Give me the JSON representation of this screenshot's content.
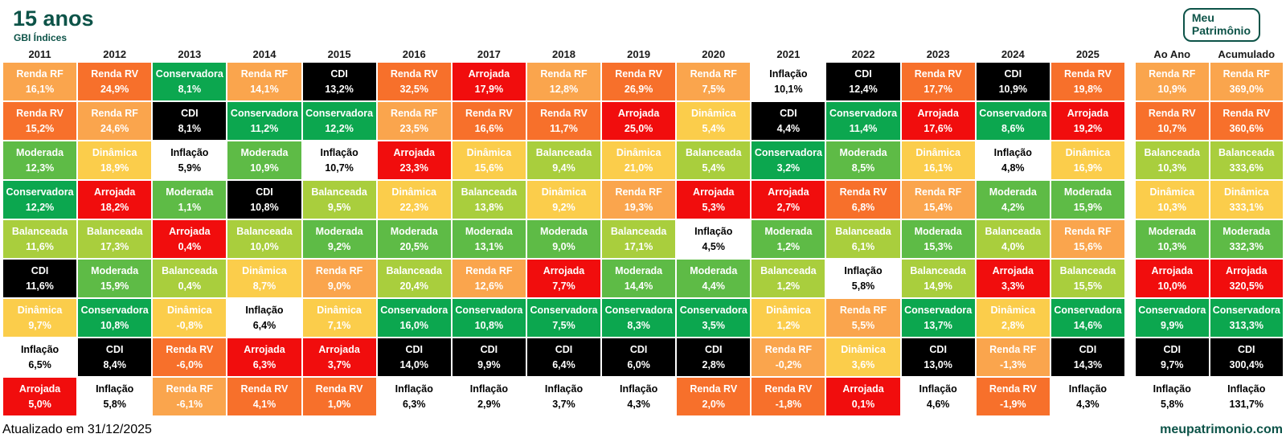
{
  "header": {
    "title": "15 anos",
    "subtitle": "GBI Índices",
    "logo_line1": "Meu",
    "logo_line2": "Patrimônio"
  },
  "footer": {
    "updated": "Atualizado em 31/12/2025",
    "site": "meupatrimonio.com"
  },
  "colors": {
    "brand_green": "#0d5348",
    "header_text": "#1a1a1a"
  },
  "chart_data": {
    "type": "table",
    "title": "15 anos",
    "subtitle": "GBI Índices",
    "description": "Quilt chart of annual returns by portfolio profile, ranked best-to-worst per year, 2011-2025 plus annualized (Ao Ano) and cumulative (Acumulado) columns",
    "categories": {
      "renda_rf": {
        "label": "Renda RF",
        "bg": "#faa54d",
        "fg": "#ffffff"
      },
      "renda_rv": {
        "label": "Renda RV",
        "bg": "#f7702b",
        "fg": "#ffffff"
      },
      "conservadora": {
        "label": "Conservadora",
        "bg": "#0ca74f",
        "fg": "#ffffff"
      },
      "moderada": {
        "label": "Moderada",
        "bg": "#5ebb46",
        "fg": "#ffffff"
      },
      "balanceada": {
        "label": "Balanceada",
        "bg": "#a9ce3d",
        "fg": "#ffffff"
      },
      "dinamica": {
        "label": "Dinâmica",
        "bg": "#fbcd4b",
        "fg": "#ffffff"
      },
      "arrojada": {
        "label": "Arrojada",
        "bg": "#f10d0d",
        "fg": "#ffffff"
      },
      "cdi": {
        "label": "CDI",
        "bg": "#000000",
        "fg": "#ffffff"
      },
      "inflacao": {
        "label": "Inflação",
        "bg": "#ffffff",
        "fg": "#000000"
      }
    },
    "columns": [
      {
        "label": "2011",
        "summary": false,
        "cells": [
          [
            "renda_rf",
            "16,1%"
          ],
          [
            "renda_rv",
            "15,2%"
          ],
          [
            "moderada",
            "12,3%"
          ],
          [
            "conservadora",
            "12,2%"
          ],
          [
            "balanceada",
            "11,6%"
          ],
          [
            "cdi",
            "11,6%"
          ],
          [
            "dinamica",
            "9,7%"
          ],
          [
            "inflacao",
            "6,5%"
          ],
          [
            "arrojada",
            "5,0%"
          ]
        ]
      },
      {
        "label": "2012",
        "summary": false,
        "cells": [
          [
            "renda_rv",
            "24,9%"
          ],
          [
            "renda_rf",
            "24,6%"
          ],
          [
            "dinamica",
            "18,9%"
          ],
          [
            "arrojada",
            "18,2%"
          ],
          [
            "balanceada",
            "17,3%"
          ],
          [
            "moderada",
            "15,9%"
          ],
          [
            "conservadora",
            "10,8%"
          ],
          [
            "cdi",
            "8,4%"
          ],
          [
            "inflacao",
            "5,8%"
          ]
        ]
      },
      {
        "label": "2013",
        "summary": false,
        "cells": [
          [
            "conservadora",
            "8,1%"
          ],
          [
            "cdi",
            "8,1%"
          ],
          [
            "inflacao",
            "5,9%"
          ],
          [
            "moderada",
            "1,1%"
          ],
          [
            "arrojada",
            "0,4%"
          ],
          [
            "balanceada",
            "0,4%"
          ],
          [
            "dinamica",
            "-0,8%"
          ],
          [
            "renda_rv",
            "-6,0%"
          ],
          [
            "renda_rf",
            "-6,1%"
          ]
        ]
      },
      {
        "label": "2014",
        "summary": false,
        "cells": [
          [
            "renda_rf",
            "14,1%"
          ],
          [
            "conservadora",
            "11,2%"
          ],
          [
            "moderada",
            "10,9%"
          ],
          [
            "cdi",
            "10,8%"
          ],
          [
            "balanceada",
            "10,0%"
          ],
          [
            "dinamica",
            "8,7%"
          ],
          [
            "inflacao",
            "6,4%"
          ],
          [
            "arrojada",
            "6,3%"
          ],
          [
            "renda_rv",
            "4,1%"
          ]
        ]
      },
      {
        "label": "2015",
        "summary": false,
        "cells": [
          [
            "cdi",
            "13,2%"
          ],
          [
            "conservadora",
            "12,2%"
          ],
          [
            "inflacao",
            "10,7%"
          ],
          [
            "balanceada",
            "9,5%"
          ],
          [
            "moderada",
            "9,2%"
          ],
          [
            "renda_rf",
            "9,0%"
          ],
          [
            "dinamica",
            "7,1%"
          ],
          [
            "arrojada",
            "3,7%"
          ],
          [
            "renda_rv",
            "1,0%"
          ]
        ]
      },
      {
        "label": "2016",
        "summary": false,
        "cells": [
          [
            "renda_rv",
            "32,5%"
          ],
          [
            "renda_rf",
            "23,5%"
          ],
          [
            "arrojada",
            "23,3%"
          ],
          [
            "dinamica",
            "22,3%"
          ],
          [
            "moderada",
            "20,5%"
          ],
          [
            "balanceada",
            "20,4%"
          ],
          [
            "conservadora",
            "16,0%"
          ],
          [
            "cdi",
            "14,0%"
          ],
          [
            "inflacao",
            "6,3%"
          ]
        ]
      },
      {
        "label": "2017",
        "summary": false,
        "cells": [
          [
            "arrojada",
            "17,9%"
          ],
          [
            "renda_rv",
            "16,6%"
          ],
          [
            "dinamica",
            "15,6%"
          ],
          [
            "balanceada",
            "13,8%"
          ],
          [
            "moderada",
            "13,1%"
          ],
          [
            "renda_rf",
            "12,6%"
          ],
          [
            "conservadora",
            "10,8%"
          ],
          [
            "cdi",
            "9,9%"
          ],
          [
            "inflacao",
            "2,9%"
          ]
        ]
      },
      {
        "label": "2018",
        "summary": false,
        "cells": [
          [
            "renda_rf",
            "12,8%"
          ],
          [
            "renda_rv",
            "11,7%"
          ],
          [
            "balanceada",
            "9,4%"
          ],
          [
            "dinamica",
            "9,2%"
          ],
          [
            "moderada",
            "9,0%"
          ],
          [
            "arrojada",
            "7,7%"
          ],
          [
            "conservadora",
            "7,5%"
          ],
          [
            "cdi",
            "6,4%"
          ],
          [
            "inflacao",
            "3,7%"
          ]
        ]
      },
      {
        "label": "2019",
        "summary": false,
        "cells": [
          [
            "renda_rv",
            "26,9%"
          ],
          [
            "arrojada",
            "25,0%"
          ],
          [
            "dinamica",
            "21,0%"
          ],
          [
            "renda_rf",
            "19,3%"
          ],
          [
            "balanceada",
            "17,1%"
          ],
          [
            "moderada",
            "14,4%"
          ],
          [
            "conservadora",
            "8,3%"
          ],
          [
            "cdi",
            "6,0%"
          ],
          [
            "inflacao",
            "4,3%"
          ]
        ]
      },
      {
        "label": "2020",
        "summary": false,
        "cells": [
          [
            "renda_rf",
            "7,5%"
          ],
          [
            "dinamica",
            "5,4%"
          ],
          [
            "balanceada",
            "5,4%"
          ],
          [
            "arrojada",
            "5,3%"
          ],
          [
            "inflacao",
            "4,5%"
          ],
          [
            "moderada",
            "4,4%"
          ],
          [
            "conservadora",
            "3,5%"
          ],
          [
            "cdi",
            "2,8%"
          ],
          [
            "renda_rv",
            "2,0%"
          ]
        ]
      },
      {
        "label": "2021",
        "summary": false,
        "cells": [
          [
            "inflacao",
            "10,1%"
          ],
          [
            "cdi",
            "4,4%"
          ],
          [
            "conservadora",
            "3,2%"
          ],
          [
            "arrojada",
            "2,7%"
          ],
          [
            "moderada",
            "1,2%"
          ],
          [
            "balanceada",
            "1,2%"
          ],
          [
            "dinamica",
            "1,2%"
          ],
          [
            "renda_rf",
            "-0,2%"
          ],
          [
            "renda_rv",
            "-1,8%"
          ]
        ]
      },
      {
        "label": "2022",
        "summary": false,
        "cells": [
          [
            "cdi",
            "12,4%"
          ],
          [
            "conservadora",
            "11,4%"
          ],
          [
            "moderada",
            "8,5%"
          ],
          [
            "renda_rv",
            "6,8%"
          ],
          [
            "balanceada",
            "6,1%"
          ],
          [
            "inflacao",
            "5,8%"
          ],
          [
            "renda_rf",
            "5,5%"
          ],
          [
            "dinamica",
            "3,6%"
          ],
          [
            "arrojada",
            "0,1%"
          ]
        ]
      },
      {
        "label": "2023",
        "summary": false,
        "cells": [
          [
            "renda_rv",
            "17,7%"
          ],
          [
            "arrojada",
            "17,6%"
          ],
          [
            "dinamica",
            "16,1%"
          ],
          [
            "renda_rf",
            "15,4%"
          ],
          [
            "moderada",
            "15,3%"
          ],
          [
            "balanceada",
            "14,9%"
          ],
          [
            "conservadora",
            "13,7%"
          ],
          [
            "cdi",
            "13,0%"
          ],
          [
            "inflacao",
            "4,6%"
          ]
        ]
      },
      {
        "label": "2024",
        "summary": false,
        "cells": [
          [
            "cdi",
            "10,9%"
          ],
          [
            "conservadora",
            "8,6%"
          ],
          [
            "inflacao",
            "4,8%"
          ],
          [
            "moderada",
            "4,2%"
          ],
          [
            "balanceada",
            "4,0%"
          ],
          [
            "arrojada",
            "3,3%"
          ],
          [
            "dinamica",
            "2,8%"
          ],
          [
            "renda_rf",
            "-1,3%"
          ],
          [
            "renda_rv",
            "-1,9%"
          ]
        ]
      },
      {
        "label": "2025",
        "summary": false,
        "cells": [
          [
            "renda_rv",
            "19,8%"
          ],
          [
            "arrojada",
            "19,2%"
          ],
          [
            "dinamica",
            "16,9%"
          ],
          [
            "moderada",
            "15,9%"
          ],
          [
            "renda_rf",
            "15,6%"
          ],
          [
            "balanceada",
            "15,5%"
          ],
          [
            "conservadora",
            "14,6%"
          ],
          [
            "cdi",
            "14,3%"
          ],
          [
            "inflacao",
            "4,3%"
          ]
        ]
      },
      {
        "label": "Ao Ano",
        "summary": true,
        "cells": [
          [
            "renda_rf",
            "10,9%"
          ],
          [
            "renda_rv",
            "10,7%"
          ],
          [
            "balanceada",
            "10,3%"
          ],
          [
            "dinamica",
            "10,3%"
          ],
          [
            "moderada",
            "10,3%"
          ],
          [
            "arrojada",
            "10,0%"
          ],
          [
            "conservadora",
            "9,9%"
          ],
          [
            "cdi",
            "9,7%"
          ],
          [
            "inflacao",
            "5,8%"
          ]
        ]
      },
      {
        "label": "Acumulado",
        "summary": true,
        "cells": [
          [
            "renda_rf",
            "369,0%"
          ],
          [
            "renda_rv",
            "360,6%"
          ],
          [
            "balanceada",
            "333,6%"
          ],
          [
            "dinamica",
            "333,1%"
          ],
          [
            "moderada",
            "332,3%"
          ],
          [
            "arrojada",
            "320,5%"
          ],
          [
            "conservadora",
            "313,3%"
          ],
          [
            "cdi",
            "300,4%"
          ],
          [
            "inflacao",
            "131,7%"
          ]
        ]
      }
    ]
  }
}
